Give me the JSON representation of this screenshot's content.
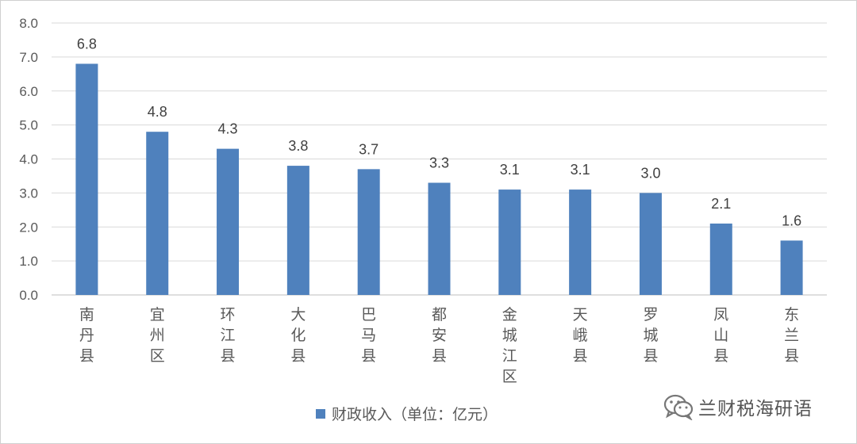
{
  "chart_data": {
    "type": "bar",
    "categories": [
      "南丹县",
      "宜州区",
      "环江县",
      "大化县",
      "巴马县",
      "都安县",
      "金城江区",
      "天峨县",
      "罗城县",
      "凤山县",
      "东兰县"
    ],
    "values": [
      6.8,
      4.8,
      4.3,
      3.8,
      3.7,
      3.3,
      3.1,
      3.1,
      3.0,
      2.1,
      1.6
    ],
    "series": [
      {
        "name": "财政收入（单位：亿元）",
        "values": [
          6.8,
          4.8,
          4.3,
          3.8,
          3.7,
          3.3,
          3.1,
          3.1,
          3.0,
          2.1,
          1.6
        ]
      }
    ],
    "ylim": [
      0,
      8
    ],
    "yticks": [
      "0.0",
      "1.0",
      "2.0",
      "3.0",
      "4.0",
      "5.0",
      "6.0",
      "7.0",
      "8.0"
    ],
    "grid": true,
    "legend": "bottom",
    "bar_color": "#4f81bd",
    "grid_color": "#d9d9d9",
    "axis_color": "#bfbfbf"
  },
  "legend": {
    "label": "财政收入（单位：亿元）"
  },
  "watermark": {
    "text": "兰财税海研语",
    "icon": "wechat-icon"
  }
}
